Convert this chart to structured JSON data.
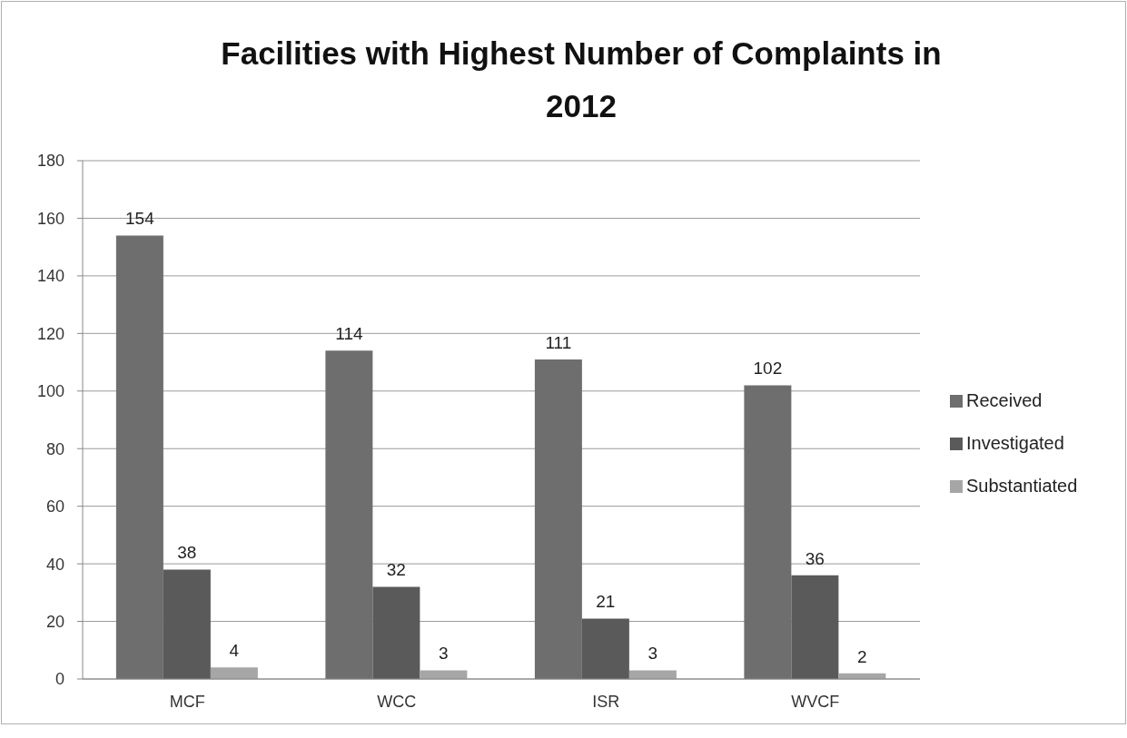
{
  "chart_data": {
    "type": "bar",
    "title": "Facilities with Highest Number of Complaints in 2012",
    "categories": [
      "MCF",
      "WCC",
      "ISR",
      "WVCF"
    ],
    "series": [
      {
        "name": "Received",
        "color": "#6e6e6e",
        "values": [
          154,
          114,
          111,
          102
        ]
      },
      {
        "name": "Investigated",
        "color": "#5a5a5a",
        "values": [
          38,
          32,
          21,
          36
        ]
      },
      {
        "name": "Substantiated",
        "color": "#a6a6a6",
        "values": [
          4,
          3,
          3,
          2
        ]
      }
    ],
    "ylim": [
      0,
      180
    ],
    "yticks": [
      0,
      20,
      40,
      60,
      80,
      100,
      120,
      140,
      160,
      180
    ],
    "grid": "y",
    "legend": "right",
    "data_labels": true
  }
}
